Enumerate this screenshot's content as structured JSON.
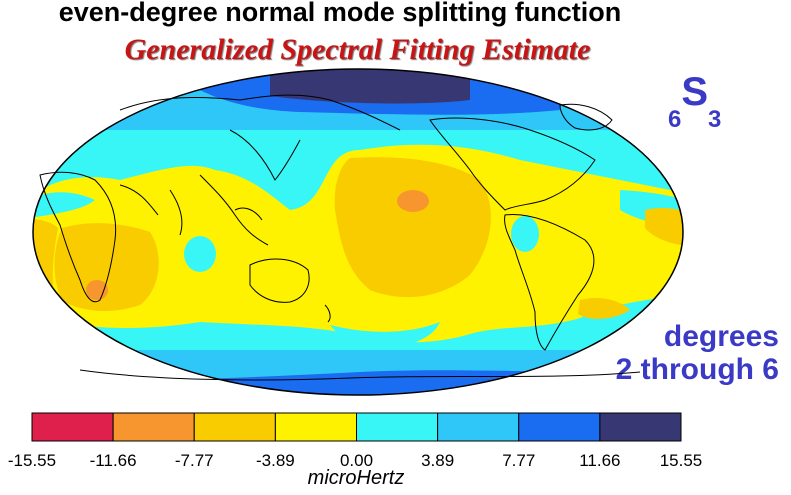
{
  "header": {
    "title": "even-degree normal mode splitting function",
    "subtitle": "Generalized Spectral Fitting Estimate"
  },
  "mode_label": {
    "subscript_left": "6",
    "letter": "S",
    "subscript_right": "3"
  },
  "degrees": {
    "line1": "degrees",
    "line2": "2 through 6"
  },
  "colorbar": {
    "colors": [
      "#e0204c",
      "#f7962e",
      "#f9cc00",
      "#fff200",
      "#38f6f6",
      "#2fc7f7",
      "#1a6cf0",
      "#373773"
    ],
    "ticks": [
      "-15.55",
      "-11.66",
      "-7.77",
      "-3.89",
      "0.00",
      "3.89",
      "7.77",
      "11.66",
      "15.55"
    ],
    "unit": "microHertz"
  },
  "map": {
    "projection": "mollweide",
    "center_longitude": "Pacific-centered",
    "palette": {
      "darkest_blue": "#373773",
      "blue": "#1a6cf0",
      "light_blue": "#2fc7f7",
      "cyan": "#38f6f6",
      "yellow": "#fff200",
      "gold": "#f9cc00",
      "orange": "#f7962e",
      "coastline": "#000000"
    }
  }
}
